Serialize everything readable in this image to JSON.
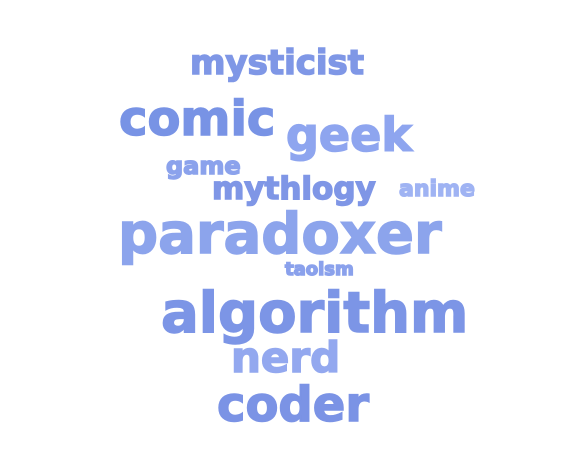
{
  "words": [
    {
      "key": "mysticist",
      "text": "mysticist",
      "color": "#7f97e6"
    },
    {
      "key": "comic",
      "text": "comic",
      "color": "#7893e5"
    },
    {
      "key": "geek",
      "text": "geek",
      "color": "#8ea5ef"
    },
    {
      "key": "game",
      "text": "game",
      "color": "#8ba2ec"
    },
    {
      "key": "mythlogy",
      "text": "mythlogy",
      "color": "#7f96e6"
    },
    {
      "key": "anime",
      "text": "anime",
      "color": "#9fb3f3"
    },
    {
      "key": "paradoxer",
      "text": "paradoxer",
      "color": "#8ca4ec"
    },
    {
      "key": "taoism",
      "text": "taoism",
      "color": "#8aa1ec"
    },
    {
      "key": "algorithm",
      "text": "algorithm",
      "color": "#7c95e6"
    },
    {
      "key": "nerd",
      "text": "nerd",
      "color": "#93a8ef"
    },
    {
      "key": "coder",
      "text": "coder",
      "color": "#7b93e5"
    }
  ]
}
